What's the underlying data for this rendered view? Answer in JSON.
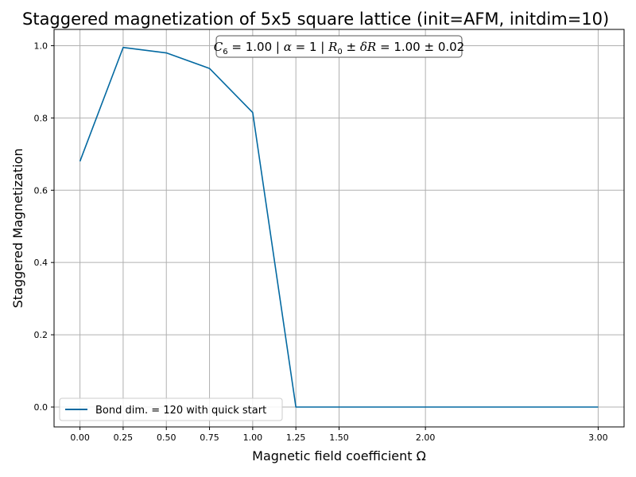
{
  "chart_data": {
    "type": "line",
    "title": "Staggered magnetization of 5x5 square lattice (init=AFM, initdim=10)",
    "xlabel": "Magnetic field coefficient Ω",
    "ylabel": "Staggered Magnetization",
    "xlim": [
      -0.15,
      3.15
    ],
    "ylim": [
      -0.055,
      1.045
    ],
    "xticks": [
      0.0,
      0.25,
      0.5,
      0.75,
      1.0,
      1.25,
      1.5,
      2.0,
      3.0
    ],
    "xtick_labels": [
      "0.00",
      "0.25",
      "0.50",
      "0.75",
      "1.00",
      "1.25",
      "1.50",
      "2.00",
      "3.00"
    ],
    "yticks": [
      0.0,
      0.2,
      0.4,
      0.6,
      0.8,
      1.0
    ],
    "ytick_labels": [
      "0.0",
      "0.2",
      "0.4",
      "0.6",
      "0.8",
      "1.0"
    ],
    "grid": true,
    "legend_position": "lower-left",
    "series": [
      {
        "name": "Bond dim. = 120 with quick start",
        "color": "#0369a1",
        "x": [
          0.0,
          0.25,
          0.5,
          0.75,
          1.0,
          1.25,
          1.5,
          2.0,
          3.0
        ],
        "y": [
          0.68,
          0.995,
          0.98,
          0.937,
          0.815,
          0.0,
          0.0,
          0.0,
          0.0
        ]
      }
    ],
    "annotation": {
      "c_sym": "C",
      "c_sub": "6",
      "c_val": " = 1.00",
      "sep1": " | ",
      "alpha_sym": "α",
      "alpha_val": " = 1",
      "sep2": " | ",
      "r_sym": "R",
      "r_sub": "0",
      "pm1": " ± ",
      "delta": "δ",
      "r2": "R",
      "r_val": " = 1.00 ± 0.02"
    }
  }
}
